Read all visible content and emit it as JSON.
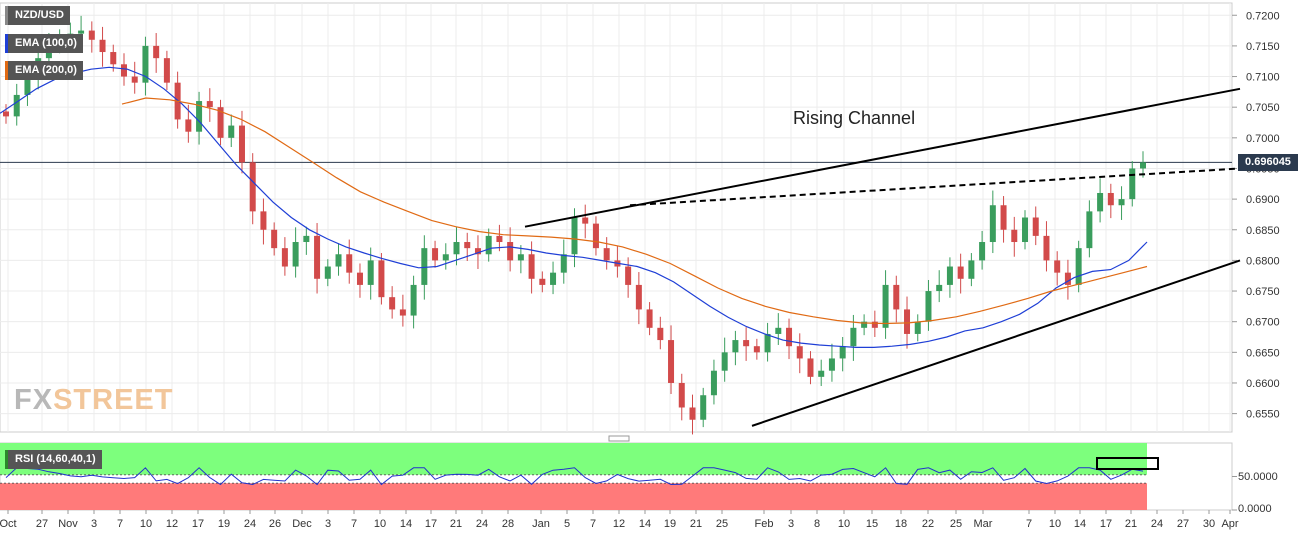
{
  "chart_data": {
    "type": "candlestick",
    "symbol": "NZD/USD",
    "indicators": [
      {
        "name": "EMA (100,0)",
        "color": "#1f3fd6"
      },
      {
        "name": "EMA (200,0)",
        "color": "#e06a14"
      }
    ],
    "last_price_label": "0.696045",
    "annotation": "Rising Channel",
    "y_ticks": [
      "0.7200",
      "0.7150",
      "0.7100",
      "0.7050",
      "0.7000",
      "0.6950",
      "0.6900",
      "0.6850",
      "0.6800",
      "0.6750",
      "0.6700",
      "0.6650",
      "0.6600",
      "0.6550"
    ],
    "ylim": [
      0.652,
      0.722
    ],
    "x_ticks": [
      "Oct",
      "27",
      "Nov",
      "3",
      "7",
      "10",
      "12",
      "17",
      "19",
      "24",
      "26",
      "Dec",
      "3",
      "7",
      "10",
      "14",
      "17",
      "21",
      "24",
      "28",
      "Jan",
      "5",
      "7",
      "12",
      "14",
      "19",
      "21",
      "25",
      "Feb",
      "3",
      "8",
      "10",
      "15",
      "18",
      "22",
      "25",
      "Mar",
      "7",
      "10",
      "14",
      "17",
      "21",
      "24",
      "27",
      "30",
      "Apr"
    ],
    "series_close": [
      0.7035,
      0.707,
      0.71,
      0.713,
      0.715,
      0.7165,
      0.717,
      0.7175,
      0.716,
      0.714,
      0.712,
      0.71,
      0.709,
      0.715,
      0.713,
      0.709,
      0.703,
      0.701,
      0.706,
      0.705,
      0.7,
      0.702,
      0.696,
      0.688,
      0.685,
      0.682,
      0.679,
      0.683,
      0.684,
      0.677,
      0.679,
      0.681,
      0.678,
      0.676,
      0.68,
      0.674,
      0.672,
      0.671,
      0.676,
      0.682,
      0.68,
      0.681,
      0.683,
      0.682,
      0.681,
      0.684,
      0.683,
      0.68,
      0.681,
      0.677,
      0.676,
      0.678,
      0.681,
      0.687,
      0.686,
      0.682,
      0.68,
      0.679,
      0.676,
      0.672,
      0.669,
      0.667,
      0.66,
      0.656,
      0.654,
      0.658,
      0.662,
      0.665,
      0.667,
      0.666,
      0.665,
      0.668,
      0.669,
      0.666,
      0.664,
      0.661,
      0.662,
      0.664,
      0.666,
      0.669,
      0.67,
      0.669,
      0.676,
      0.672,
      0.668,
      0.67,
      0.675,
      0.676,
      0.679,
      0.677,
      0.68,
      0.683,
      0.689,
      0.685,
      0.683,
      0.687,
      0.684,
      0.68,
      0.678,
      0.676,
      0.682,
      0.688,
      0.691,
      0.689,
      0.69,
      0.695,
      0.696
    ],
    "ema100": [
      0.704,
      0.706,
      0.708,
      0.7095,
      0.7105,
      0.7112,
      0.7115,
      0.7112,
      0.71,
      0.708,
      0.7055,
      0.7025,
      0.699,
      0.6955,
      0.6925,
      0.6895,
      0.687,
      0.685,
      0.6835,
      0.6822,
      0.6812,
      0.6803,
      0.6795,
      0.6788,
      0.679,
      0.68,
      0.681,
      0.682,
      0.6822,
      0.6818,
      0.6812,
      0.6808,
      0.6805,
      0.68,
      0.6795,
      0.679,
      0.678,
      0.6765,
      0.6745,
      0.6725,
      0.6707,
      0.6692,
      0.668,
      0.667,
      0.6665,
      0.6662,
      0.666,
      0.6658,
      0.6658,
      0.666,
      0.6663,
      0.6668,
      0.6675,
      0.6685,
      0.669,
      0.67,
      0.6712,
      0.673,
      0.6755,
      0.6772,
      0.6782,
      0.6785,
      0.68,
      0.683
    ],
    "ema200": [
      0.7055,
      0.7065,
      0.7062,
      0.7055,
      0.7045,
      0.703,
      0.701,
      0.6985,
      0.696,
      0.6935,
      0.6912,
      0.6895,
      0.688,
      0.6865,
      0.6855,
      0.6847,
      0.6842,
      0.684,
      0.6838,
      0.6835,
      0.683,
      0.6822,
      0.681,
      0.6795,
      0.6775,
      0.6755,
      0.6738,
      0.6725,
      0.6715,
      0.6708,
      0.6702,
      0.6698,
      0.6697,
      0.6698,
      0.6702,
      0.6708,
      0.6717,
      0.6727,
      0.6738,
      0.675,
      0.676,
      0.677,
      0.678,
      0.679
    ],
    "rsi": {
      "label": "RSI (14,60,40,1)",
      "y_ticks": [
        "50.0000",
        "0.0000"
      ],
      "ylim": [
        0,
        100
      ],
      "overbought": 60,
      "oversold": 40
    },
    "channel": {
      "upper_start": {
        "date": "27 Dec",
        "price": 0.6855
      },
      "upper_end": {
        "date": "27 Mar",
        "price": 0.708
      },
      "lower_start": {
        "date": "28 Jan",
        "price": 0.653
      },
      "lower_end": {
        "date": "27 Mar",
        "price": 0.68
      },
      "dashed_start": {
        "date": "12 Jan",
        "price": 0.689
      },
      "dashed_end": {
        "date": "27 Mar",
        "price": 0.695
      }
    },
    "horizontal_line_price": 0.696,
    "grid": true
  },
  "logo": {
    "part1": "FX",
    "part2": "STREET"
  },
  "colors": {
    "bull": "#3a9d5d",
    "bear": "#d24a4a",
    "ema100": "#1f3fd6",
    "ema200": "#e06a14",
    "rsi_line": "#2233cc",
    "rsi_over": "#7dff7d",
    "rsi_under": "#ff7a7a"
  }
}
